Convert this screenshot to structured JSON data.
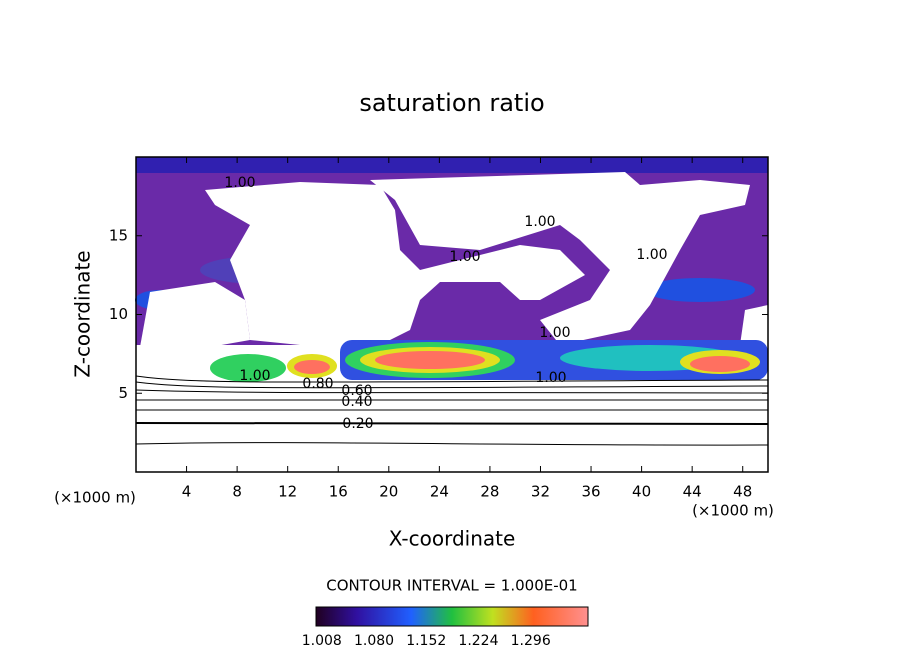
{
  "chart_data": {
    "type": "contour",
    "title": "saturation ratio",
    "xlabel": "X-coordinate",
    "ylabel": "Z-coordinate",
    "x_unit": "(×1000 m)",
    "x_unit_right": "(×1000 m)",
    "xlim": [
      0,
      50
    ],
    "xticks": [
      4,
      8,
      12,
      16,
      20,
      24,
      28,
      32,
      36,
      40,
      44,
      48
    ],
    "ylim": [
      0,
      20
    ],
    "yticks": [
      5,
      10,
      15
    ],
    "contour_interval": "CONTOUR INTERVAL = 1.000E-01",
    "contour_labels": [
      {
        "value": 1,
        "label": "1.00"
      },
      {
        "value": 1,
        "label": "1.00"
      },
      {
        "value": 1,
        "label": "1.00"
      },
      {
        "value": 1,
        "label": "1.00"
      },
      {
        "value": 1,
        "label": "1.00"
      },
      {
        "value": 1,
        "label": "1.00"
      },
      {
        "value": 1,
        "label": "1.00"
      },
      {
        "value": 0.8,
        "label": "0.80"
      },
      {
        "value": 0.6,
        "label": "0.60"
      },
      {
        "value": 0.4,
        "label": "0.40"
      },
      {
        "value": 0.2,
        "label": "0.20"
      }
    ],
    "clim": [
      1.0,
      1.375
    ],
    "colorbar_ticks": [
      1.008,
      {
        "value": 1.08,
        "label": "1.080"
      },
      1.152,
      1.224,
      1.296
    ]
  }
}
